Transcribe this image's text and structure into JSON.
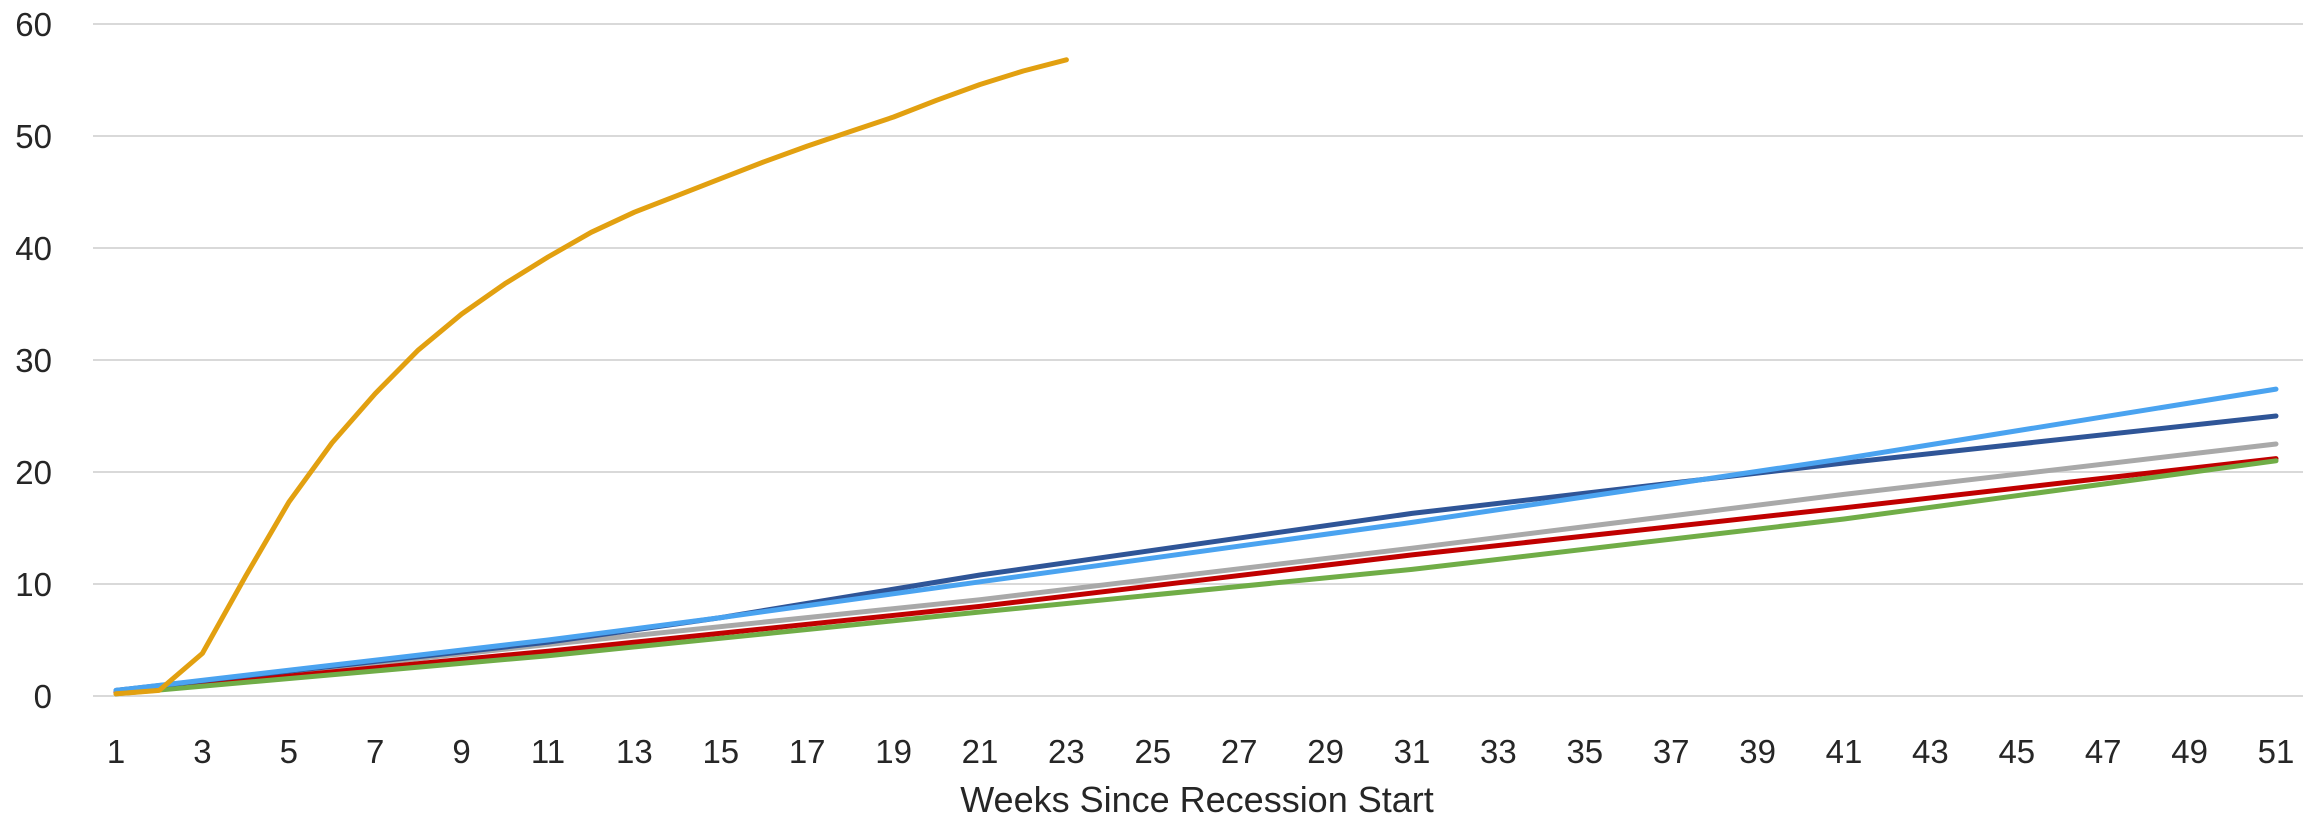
{
  "chart_data": {
    "type": "line",
    "title": "",
    "xlabel": "Weeks Since Recession Start",
    "ylabel": "",
    "x_range": [
      1,
      51
    ],
    "ylim": [
      0,
      60
    ],
    "y_ticks": [
      0,
      10,
      20,
      30,
      40,
      50,
      60
    ],
    "x_ticks": [
      1,
      3,
      5,
      7,
      9,
      11,
      13,
      15,
      17,
      19,
      21,
      23,
      25,
      27,
      29,
      31,
      33,
      35,
      37,
      39,
      41,
      43,
      45,
      47,
      49,
      51
    ],
    "grid": true,
    "legend": "none",
    "series": [
      {
        "color": "#a9a9a9",
        "x": [
          1,
          11,
          21,
          31,
          41,
          51
        ],
        "y": [
          0.4,
          4.6,
          8.6,
          13.2,
          18.0,
          22.5
        ]
      },
      {
        "color": "#c00000",
        "x": [
          1,
          11,
          21,
          31,
          41,
          51
        ],
        "y": [
          0.3,
          4.0,
          8.0,
          12.6,
          16.8,
          21.2
        ]
      },
      {
        "color": "#70ad47",
        "x": [
          1,
          11,
          21,
          31,
          41,
          51
        ],
        "y": [
          0.2,
          3.6,
          7.5,
          11.3,
          15.8,
          21.0
        ]
      },
      {
        "color": "#2f5597",
        "x": [
          1,
          11,
          15,
          21,
          31,
          41,
          51
        ],
        "y": [
          0.5,
          4.8,
          7.0,
          10.8,
          16.3,
          20.8,
          25.0
        ]
      },
      {
        "color": "#4aa3f0",
        "x": [
          1,
          11,
          15,
          21,
          31,
          41,
          51
        ],
        "y": [
          0.5,
          5.0,
          7.0,
          10.2,
          15.5,
          21.2,
          27.4
        ]
      },
      {
        "color": "#e2a010",
        "x": [
          1,
          2,
          3,
          4,
          5,
          6,
          7,
          8,
          9,
          10,
          11,
          12,
          13,
          14,
          15,
          16,
          17,
          18,
          19,
          20,
          21,
          22,
          23
        ],
        "y": [
          0.2,
          0.5,
          3.8,
          10.7,
          17.3,
          22.6,
          27.0,
          30.9,
          34.1,
          36.8,
          39.2,
          41.4,
          43.2,
          44.7,
          46.2,
          47.7,
          49.1,
          50.4,
          51.7,
          53.2,
          54.6,
          55.8,
          56.8
        ]
      }
    ]
  }
}
